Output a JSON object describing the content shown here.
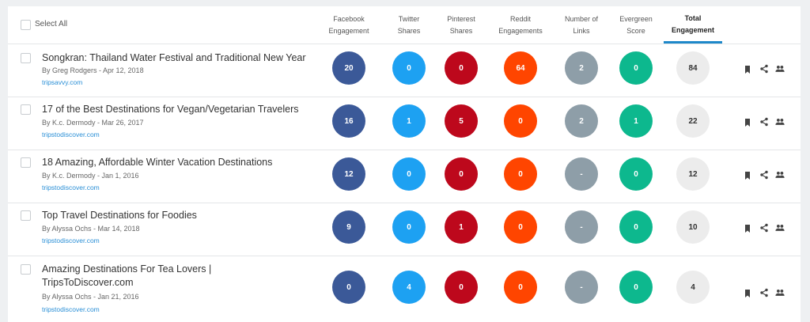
{
  "header": {
    "select_all": "Select All",
    "columns": [
      {
        "line1": "Facebook",
        "line2": "Engagement"
      },
      {
        "line1": "Twitter",
        "line2": "Shares"
      },
      {
        "line1": "Pinterest",
        "line2": "Shares"
      },
      {
        "line1": "Reddit",
        "line2": "Engagements"
      },
      {
        "line1": "Number of",
        "line2": "Links"
      },
      {
        "line1": "Evergreen",
        "line2": "Score"
      },
      {
        "line1": "Total",
        "line2": "Engagement"
      }
    ]
  },
  "colors": {
    "facebook": "#3b5998",
    "twitter": "#1da1f2",
    "pinterest": "#bd081c",
    "reddit": "#ff4500",
    "links": "#8e9ea8",
    "evergreen": "#0db88e",
    "total": "#ececec",
    "accent": "#1e88c9"
  },
  "actions": {
    "bookmark_icon": "bookmark-icon",
    "share_icon": "share-icon",
    "users_icon": "users-icon"
  },
  "rows": [
    {
      "title": "Songkran: Thailand Water Festival and Traditional New Year",
      "byline": "By Greg Rodgers - Apr 12, 2018",
      "domain": "tripsavvy.com",
      "facebook": "20",
      "twitter": "0",
      "pinterest": "0",
      "reddit": "64",
      "links": "2",
      "evergreen": "0",
      "total": "84"
    },
    {
      "title": "17 of the Best Destinations for Vegan/Vegetarian Travelers",
      "byline": "By K.c. Dermody - Mar 26, 2017",
      "domain": "tripstodiscover.com",
      "facebook": "16",
      "twitter": "1",
      "pinterest": "5",
      "reddit": "0",
      "links": "2",
      "evergreen": "1",
      "total": "22"
    },
    {
      "title": "18 Amazing, Affordable Winter Vacation Destinations",
      "byline": "By K.c. Dermody - Jan 1, 2016",
      "domain": "tripstodiscover.com",
      "facebook": "12",
      "twitter": "0",
      "pinterest": "0",
      "reddit": "0",
      "links": "-",
      "evergreen": "0",
      "total": "12"
    },
    {
      "title": "Top Travel Destinations for Foodies",
      "byline": "By Alyssa Ochs - Mar 14, 2018",
      "domain": "tripstodiscover.com",
      "facebook": "9",
      "twitter": "0",
      "pinterest": "1",
      "reddit": "0",
      "links": "-",
      "evergreen": "0",
      "total": "10"
    },
    {
      "title": "Amazing Destinations For Tea Lovers | TripsToDiscover.com",
      "byline": "By Alyssa Ochs - Jan 21, 2016",
      "domain": "tripstodiscover.com",
      "facebook": "0",
      "twitter": "4",
      "pinterest": "0",
      "reddit": "0",
      "links": "-",
      "evergreen": "0",
      "total": "4"
    }
  ]
}
